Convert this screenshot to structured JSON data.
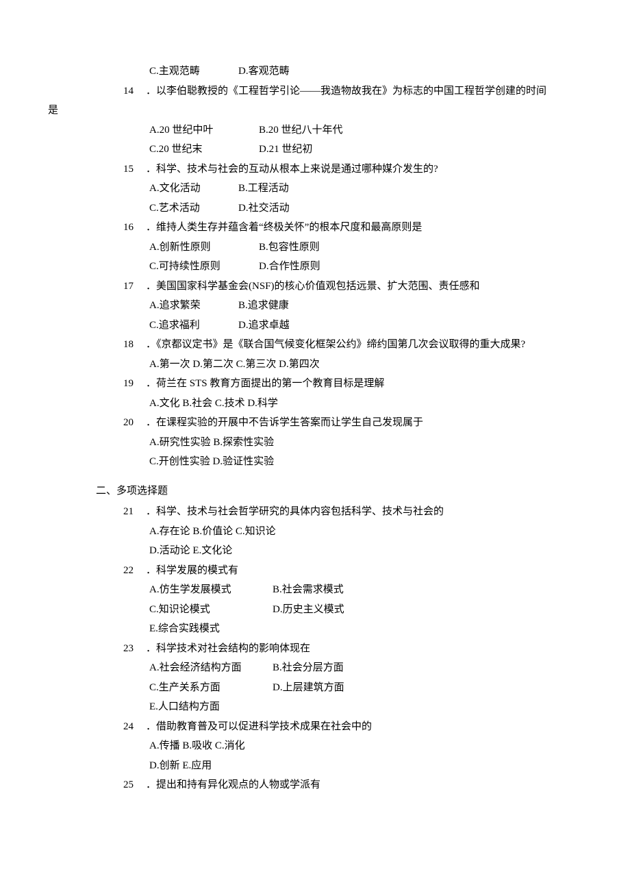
{
  "q13_tail": {
    "C": "C.主观范畴",
    "D": "D.客观范畴"
  },
  "q14": {
    "num": "14",
    "stem_main": "．以李伯聪教授的《工程哲学引论——我造物故我在》为标志的中国工程哲学创建的时间",
    "tail": "是",
    "A": "A.20 世纪中叶",
    "B": "B.20 世纪八十年代",
    "C": "C.20 世纪末",
    "D": "D.21 世纪初"
  },
  "q15": {
    "num": "15",
    "stem": "．科学、技术与社会的互动从根本上来说是通过哪种媒介发生的?",
    "A": "A.文化活动",
    "B": "B.工程活动",
    "C": "C.艺术活动",
    "D": "D.社交活动"
  },
  "q16": {
    "num": "16",
    "stem": "．维持人类生存并蕴含着“终极关怀”的根本尺度和最高原则是",
    "A": "A.创新性原则",
    "B": "B.包容性原则",
    "C": "C.可持续性原则",
    "D": "D.合作性原则"
  },
  "q17": {
    "num": "17",
    "stem": "．美国国家科学基金会(NSF)的核心价值观包括远景、扩大范围、责任感和",
    "A": "A.追求繁荣",
    "B": "B.追求健康",
    "C": "C.追求福利",
    "D": "D.追求卓越"
  },
  "q18": {
    "num": "18",
    "stem": "．《京都议定书》是《联合国气候变化框架公约》缔约国第几次会议取得的重大成果?",
    "opts_inline": "A.第一次 D.第二次 C.第三次 D.第四次"
  },
  "q19": {
    "num": "19",
    "stem": "．荷兰在 STS 教育方面提出的第一个教育目标是理解",
    "opts_inline": "A.文化 B.社会 C.技术 D.科学"
  },
  "q20": {
    "num": "20",
    "stem": "．在课程实验的开展中不告诉学生答案而让学生自己发现属于",
    "row1": "A.研究性实验 B.探索性实验",
    "row2": "C.开创性实验 D.验证性实验"
  },
  "section2": "二、多项选择题",
  "q21": {
    "num": "21",
    "stem": "．科学、技术与社会哲学研究的具体内容包括科学、技术与社会的",
    "row1": "A.存在论 B.价值论 C.知识论",
    "row2": "D.活动论 E.文化论"
  },
  "q22": {
    "num": "22",
    "stem": "．科学发展的模式有",
    "A": "A.仿生学发展模式",
    "B": "B.社会需求模式",
    "C": "C.知识论模式",
    "D": "D.历史主义模式",
    "E": "E.综合实践模式"
  },
  "q23": {
    "num": "23",
    "stem": "．科学技术对社会结构的影响体现在",
    "A": "A.社会经济结构方面",
    "B": "B.社会分层方面",
    "C": "C.生产关系方面",
    "D": "D.上层建筑方面",
    "E": "E.人口结构方面"
  },
  "q24": {
    "num": "24",
    "stem": "．借助教育普及可以促进科学技术成果在社会中的",
    "row1": "A.传播 B.吸收 C.消化",
    "row2": "D.创新 E.应用"
  },
  "q25": {
    "num": "25",
    "stem": "．提出和持有异化观点的人物或学派有"
  },
  "text_color": "#000000",
  "background_color": "#ffffff",
  "base_font_size_pt": 11
}
